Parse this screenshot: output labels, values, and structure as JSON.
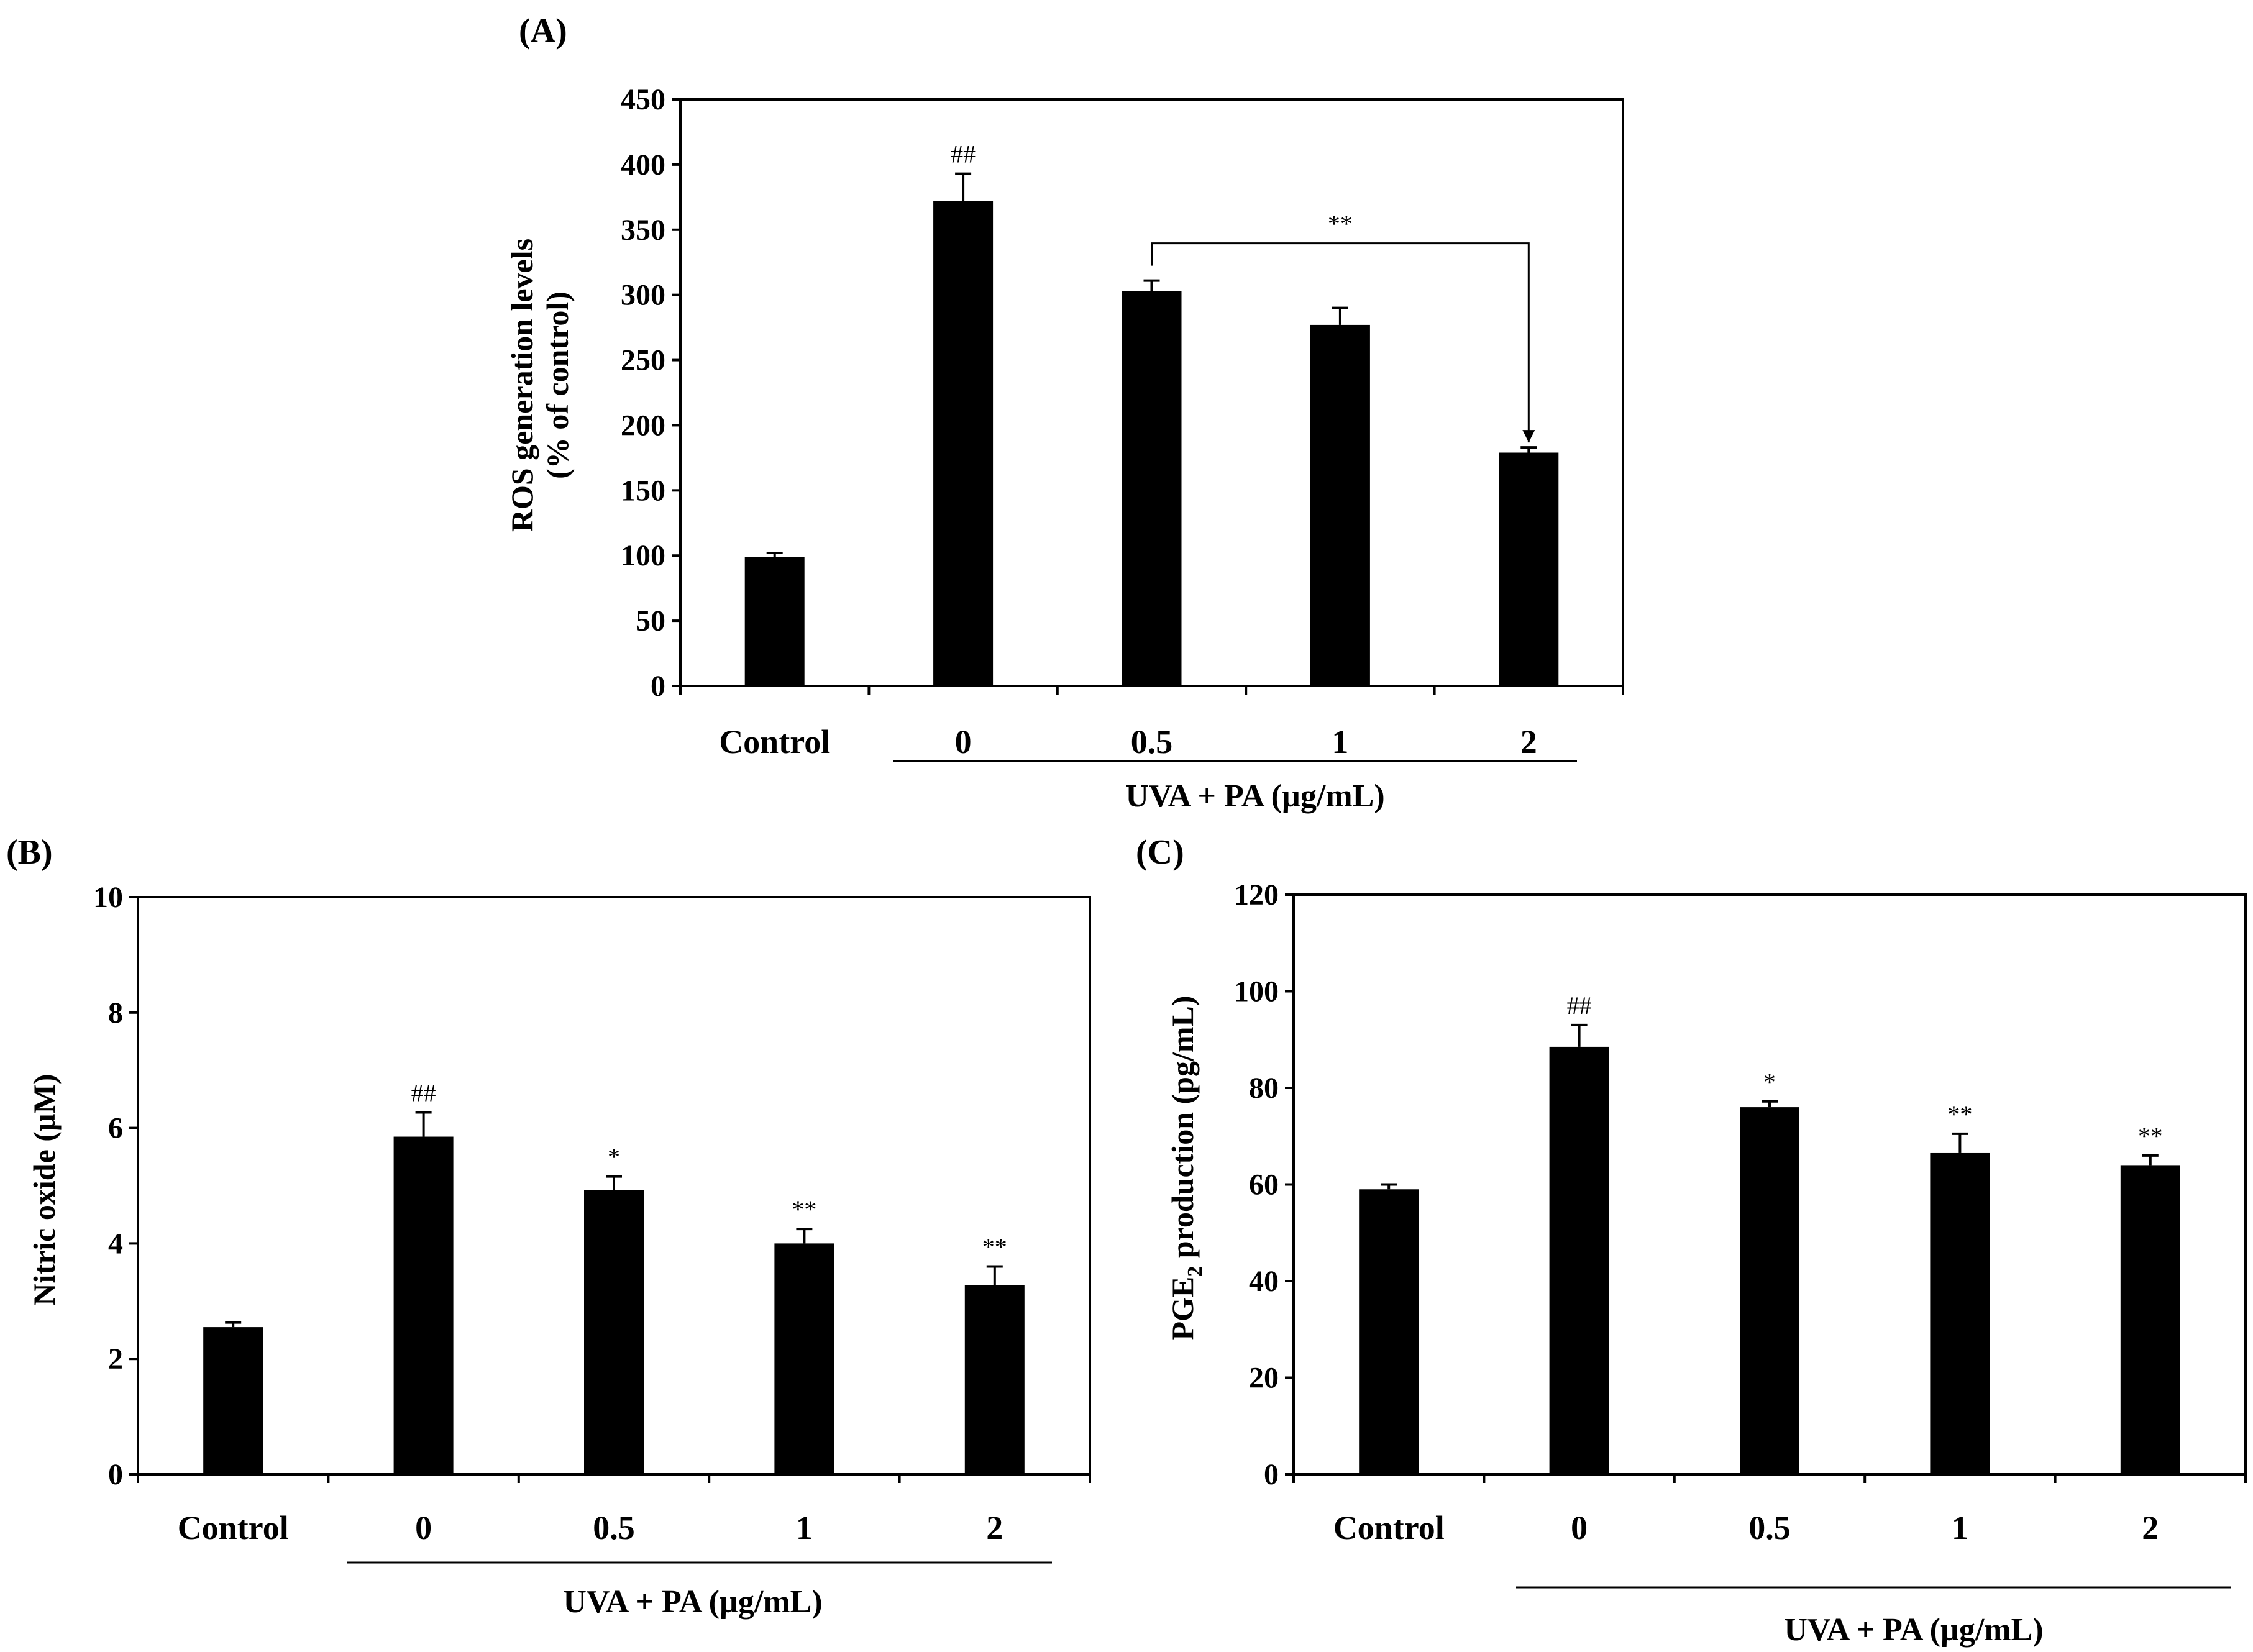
{
  "chart_data": [
    {
      "type": "bar",
      "panel_label": "(A)",
      "ylabel_line1": "ROS generation levels",
      "ylabel_line2": "(% of control)",
      "xgroup_label": "UVA + PA (µg/mL)",
      "categories": [
        "Control",
        "0",
        "0.5",
        "1",
        "2"
      ],
      "values": [
        99,
        372,
        303,
        277,
        179
      ],
      "errors": [
        3,
        21,
        8,
        13,
        4
      ],
      "ylim": [
        0,
        450
      ],
      "yticks": [
        0,
        50,
        100,
        150,
        200,
        250,
        300,
        350,
        400,
        450
      ],
      "significance": [
        "",
        "##",
        "",
        "",
        ""
      ],
      "bracket": {
        "from": 2,
        "to": 4,
        "label": "**"
      }
    },
    {
      "type": "bar",
      "panel_label": "(B)",
      "ylabel": "Nitric oxide (µM)",
      "xgroup_label": "UVA + PA (µg/mL)",
      "categories": [
        "Control",
        "0",
        "0.5",
        "1",
        "2"
      ],
      "values": [
        2.55,
        5.85,
        4.92,
        4.0,
        3.28
      ],
      "errors": [
        0.08,
        0.42,
        0.24,
        0.25,
        0.32
      ],
      "ylim": [
        0,
        10
      ],
      "yticks": [
        0,
        2,
        4,
        6,
        8,
        10
      ],
      "significance": [
        "",
        "##",
        "*",
        "**",
        "**"
      ]
    },
    {
      "type": "bar",
      "panel_label": "(C)",
      "ylabel_main": "PGE",
      "ylabel_sub": "2",
      "ylabel_rest": " production  (pg/mL)",
      "xgroup_label": "UVA + PA (µg/mL)",
      "categories": [
        "Control",
        "0",
        "0.5",
        "1",
        "2"
      ],
      "values": [
        59,
        88.5,
        76,
        66.5,
        64
      ],
      "errors": [
        1,
        4.5,
        1.2,
        4,
        2
      ],
      "ylim": [
        0,
        120
      ],
      "yticks": [
        0,
        20,
        40,
        60,
        80,
        100,
        120
      ],
      "significance": [
        "",
        "##",
        "*",
        "**",
        "**"
      ]
    }
  ]
}
